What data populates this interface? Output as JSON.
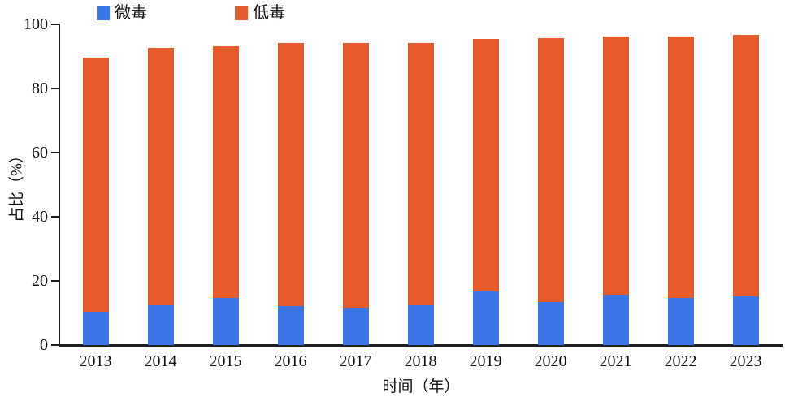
{
  "legend": {
    "items": [
      {
        "label": "微毒",
        "color": "#3B76E8"
      },
      {
        "label": "低毒",
        "color": "#E55B2B"
      }
    ]
  },
  "chart_data": {
    "type": "bar",
    "stacked": true,
    "title": "",
    "xlabel": "时间（年）",
    "ylabel": "占比（%）",
    "ylim": [
      0,
      100
    ],
    "yticks": [
      0,
      20,
      40,
      60,
      80,
      100
    ],
    "grid": false,
    "legend_position": "top",
    "categories": [
      "2013",
      "2014",
      "2015",
      "2016",
      "2017",
      "2018",
      "2019",
      "2020",
      "2021",
      "2022",
      "2023"
    ],
    "series": [
      {
        "name": "微毒",
        "color": "#3B76E8",
        "values": [
          10.5,
          12.3,
          14.7,
          12.2,
          11.7,
          12.4,
          16.8,
          13.5,
          15.8,
          14.6,
          15.3
        ]
      },
      {
        "name": "低毒",
        "color": "#E55B2B",
        "values": [
          79.0,
          80.3,
          78.5,
          82.1,
          82.6,
          81.9,
          78.7,
          82.1,
          80.3,
          81.5,
          81.4
        ]
      }
    ],
    "totals": [
      89.5,
      92.6,
      93.2,
      94.3,
      94.3,
      94.3,
      95.5,
      95.6,
      96.1,
      96.1,
      96.7
    ]
  }
}
